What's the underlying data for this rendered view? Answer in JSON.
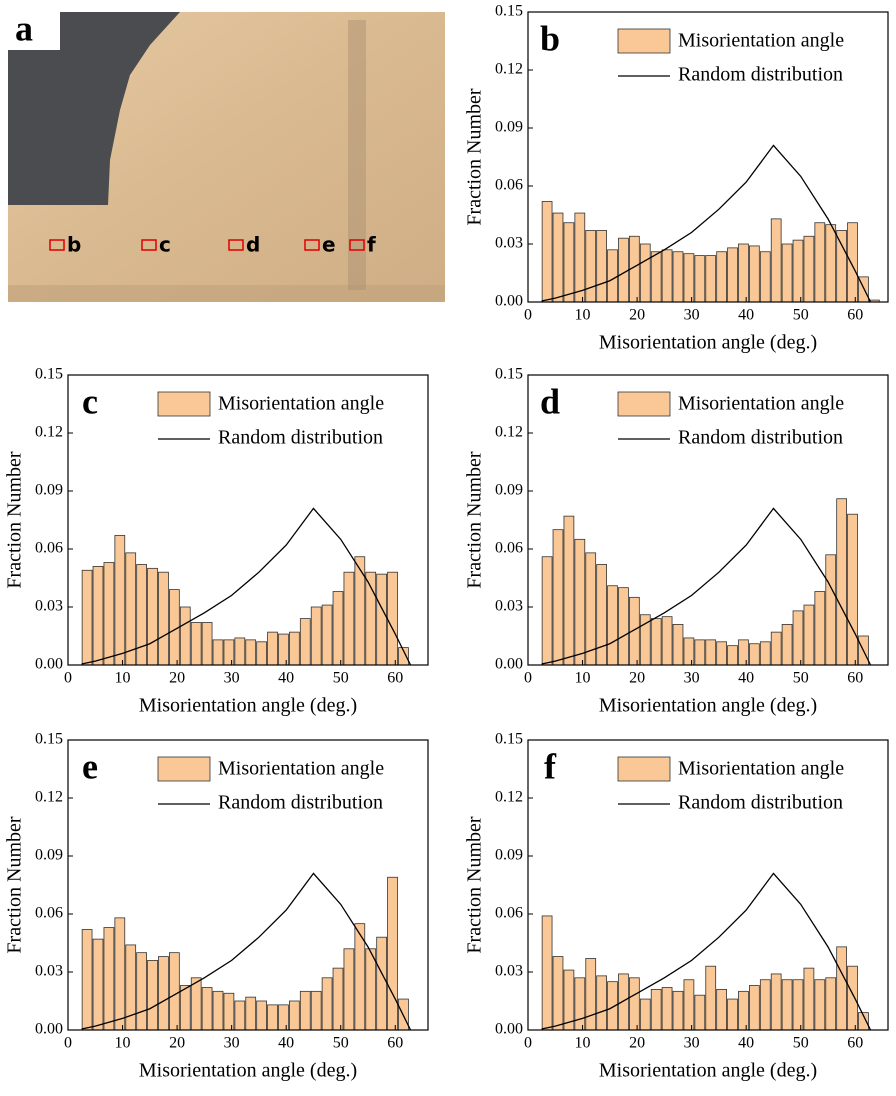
{
  "image_panel": {
    "label": "a",
    "markers": [
      "b",
      "c",
      "d",
      "e",
      "f"
    ]
  },
  "chart_data": [
    {
      "type": "histogram",
      "panel_label": "b",
      "xlabel": "Misorientation angle (deg.)",
      "ylabel": "Fraction Number",
      "bins": [
        2.5,
        4.5,
        6.5,
        8.5,
        10.5,
        12.5,
        14.5,
        16.5,
        18.5,
        20.5,
        22.5,
        24.5,
        26.5,
        28.5,
        30.5,
        32.5,
        34.5,
        36.5,
        38.5,
        40.5,
        42.5,
        44.5,
        46.5,
        48.5,
        50.5,
        52.5,
        54.5,
        56.5,
        58.5,
        60.5,
        62.5,
        64.5
      ],
      "series": [
        {
          "name": "Misorientation angle",
          "color": "#f9c896",
          "values": [
            0.052,
            0.046,
            0.041,
            0.046,
            0.037,
            0.037,
            0.027,
            0.033,
            0.034,
            0.03,
            0.026,
            0.027,
            0.026,
            0.025,
            0.024,
            0.024,
            0.026,
            0.028,
            0.03,
            0.029,
            0.026,
            0.043,
            0.03,
            0.032,
            0.034,
            0.041,
            0.04,
            0.037,
            0.041,
            0.013,
            0.001
          ]
        }
      ],
      "line": {
        "name": "Random distribution",
        "color": "#000000",
        "x": [
          2.5,
          5,
          10,
          15,
          20,
          25,
          30,
          35,
          40,
          45,
          50,
          55,
          60,
          62.8
        ],
        "values": [
          0.0005,
          0.002,
          0.006,
          0.011,
          0.019,
          0.027,
          0.036,
          0.048,
          0.062,
          0.081,
          0.065,
          0.043,
          0.016,
          0.0
        ]
      },
      "xlim": [
        0,
        66
      ],
      "ylim": [
        0,
        0.15
      ],
      "xticks": [
        0,
        10,
        20,
        30,
        40,
        50,
        60
      ],
      "yticks": [
        {
          "value": 0,
          "label": "0.00"
        },
        {
          "value": 0.03,
          "label": "0.03"
        },
        {
          "value": 0.06,
          "label": "0.06"
        },
        {
          "value": 0.09,
          "label": "0.09"
        },
        {
          "value": 0.12,
          "label": "0.12"
        },
        {
          "value": 0.15,
          "label": "0.15"
        }
      ]
    },
    {
      "type": "histogram",
      "panel_label": "c",
      "xlabel": "Misorientation angle (deg.)",
      "ylabel": "Fraction Number",
      "bins": [
        2.5,
        4.5,
        6.5,
        8.5,
        10.5,
        12.5,
        14.5,
        16.5,
        18.5,
        20.5,
        22.5,
        24.5,
        26.5,
        28.5,
        30.5,
        32.5,
        34.5,
        36.5,
        38.5,
        40.5,
        42.5,
        44.5,
        46.5,
        48.5,
        50.5,
        52.5,
        54.5,
        56.5,
        58.5,
        60.5,
        62.5,
        64.5
      ],
      "series": [
        {
          "name": "Misorientation angle",
          "color": "#f9c896",
          "values": [
            0.049,
            0.051,
            0.053,
            0.067,
            0.058,
            0.052,
            0.05,
            0.048,
            0.039,
            0.03,
            0.022,
            0.022,
            0.013,
            0.013,
            0.014,
            0.013,
            0.012,
            0.017,
            0.016,
            0.017,
            0.024,
            0.03,
            0.031,
            0.038,
            0.048,
            0.056,
            0.048,
            0.047,
            0.048,
            0.009,
            0.0
          ]
        }
      ],
      "line": {
        "name": "Random distribution",
        "color": "#000000",
        "x": [
          2.5,
          5,
          10,
          15,
          20,
          25,
          30,
          35,
          40,
          45,
          50,
          55,
          60,
          62.8
        ],
        "values": [
          0.0005,
          0.002,
          0.006,
          0.011,
          0.019,
          0.027,
          0.036,
          0.048,
          0.062,
          0.081,
          0.065,
          0.043,
          0.016,
          0.0
        ]
      },
      "xlim": [
        0,
        66
      ],
      "ylim": [
        0,
        0.15
      ],
      "xticks": [
        0,
        10,
        20,
        30,
        40,
        50,
        60
      ],
      "yticks": [
        {
          "value": 0,
          "label": "0.00"
        },
        {
          "value": 0.03,
          "label": "0.03"
        },
        {
          "value": 0.06,
          "label": "0.06"
        },
        {
          "value": 0.09,
          "label": "0.09"
        },
        {
          "value": 0.12,
          "label": "0.12"
        },
        {
          "value": 0.15,
          "label": "0.15"
        }
      ]
    },
    {
      "type": "histogram",
      "panel_label": "d",
      "xlabel": "Misorientation angle (deg.)",
      "ylabel": "Fraction Number",
      "bins": [
        2.5,
        4.5,
        6.5,
        8.5,
        10.5,
        12.5,
        14.5,
        16.5,
        18.5,
        20.5,
        22.5,
        24.5,
        26.5,
        28.5,
        30.5,
        32.5,
        34.5,
        36.5,
        38.5,
        40.5,
        42.5,
        44.5,
        46.5,
        48.5,
        50.5,
        52.5,
        54.5,
        56.5,
        58.5,
        60.5,
        62.5,
        64.5
      ],
      "series": [
        {
          "name": "Misorientation angle",
          "color": "#f9c896",
          "values": [
            0.056,
            0.07,
            0.077,
            0.065,
            0.058,
            0.052,
            0.041,
            0.04,
            0.035,
            0.026,
            0.024,
            0.025,
            0.021,
            0.014,
            0.013,
            0.013,
            0.012,
            0.01,
            0.013,
            0.011,
            0.012,
            0.017,
            0.021,
            0.028,
            0.031,
            0.038,
            0.057,
            0.086,
            0.078,
            0.015,
            0.0
          ]
        }
      ],
      "line": {
        "name": "Random distribution",
        "color": "#000000",
        "x": [
          2.5,
          5,
          10,
          15,
          20,
          25,
          30,
          35,
          40,
          45,
          50,
          55,
          60,
          62.8
        ],
        "values": [
          0.0005,
          0.002,
          0.006,
          0.011,
          0.019,
          0.027,
          0.036,
          0.048,
          0.062,
          0.081,
          0.065,
          0.043,
          0.016,
          0.0
        ]
      },
      "xlim": [
        0,
        66
      ],
      "ylim": [
        0,
        0.15
      ],
      "xticks": [
        0,
        10,
        20,
        30,
        40,
        50,
        60
      ],
      "yticks": [
        {
          "value": 0,
          "label": "0.00"
        },
        {
          "value": 0.03,
          "label": "0.03"
        },
        {
          "value": 0.06,
          "label": "0.06"
        },
        {
          "value": 0.09,
          "label": "0.09"
        },
        {
          "value": 0.12,
          "label": "0.12"
        },
        {
          "value": 0.15,
          "label": "0.15"
        }
      ]
    },
    {
      "type": "histogram",
      "panel_label": "e",
      "xlabel": "Misorientation angle (deg.)",
      "ylabel": "Fraction Number",
      "bins": [
        2.5,
        4.5,
        6.5,
        8.5,
        10.5,
        12.5,
        14.5,
        16.5,
        18.5,
        20.5,
        22.5,
        24.5,
        26.5,
        28.5,
        30.5,
        32.5,
        34.5,
        36.5,
        38.5,
        40.5,
        42.5,
        44.5,
        46.5,
        48.5,
        50.5,
        52.5,
        54.5,
        56.5,
        58.5,
        60.5,
        62.5,
        64.5
      ],
      "series": [
        {
          "name": "Misorientation angle",
          "color": "#f9c896",
          "values": [
            0.052,
            0.047,
            0.053,
            0.058,
            0.044,
            0.04,
            0.036,
            0.038,
            0.04,
            0.023,
            0.027,
            0.022,
            0.02,
            0.019,
            0.015,
            0.017,
            0.015,
            0.013,
            0.013,
            0.015,
            0.02,
            0.02,
            0.027,
            0.032,
            0.042,
            0.055,
            0.042,
            0.048,
            0.079,
            0.016,
            0.0
          ]
        }
      ],
      "line": {
        "name": "Random distribution",
        "color": "#000000",
        "x": [
          2.5,
          5,
          10,
          15,
          20,
          25,
          30,
          35,
          40,
          45,
          50,
          55,
          60,
          62.8
        ],
        "values": [
          0.0005,
          0.002,
          0.006,
          0.011,
          0.019,
          0.027,
          0.036,
          0.048,
          0.062,
          0.081,
          0.065,
          0.043,
          0.016,
          0.0
        ]
      },
      "xlim": [
        0,
        66
      ],
      "ylim": [
        0,
        0.15
      ],
      "xticks": [
        0,
        10,
        20,
        30,
        40,
        50,
        60
      ],
      "yticks": [
        {
          "value": 0,
          "label": "0.00"
        },
        {
          "value": 0.03,
          "label": "0.03"
        },
        {
          "value": 0.06,
          "label": "0.06"
        },
        {
          "value": 0.09,
          "label": "0.09"
        },
        {
          "value": 0.12,
          "label": "0.12"
        },
        {
          "value": 0.15,
          "label": "0.15"
        }
      ]
    },
    {
      "type": "histogram",
      "panel_label": "f",
      "xlabel": "Misorientation angle (deg.)",
      "ylabel": "Fraction Number",
      "bins": [
        2.5,
        4.5,
        6.5,
        8.5,
        10.5,
        12.5,
        14.5,
        16.5,
        18.5,
        20.5,
        22.5,
        24.5,
        26.5,
        28.5,
        30.5,
        32.5,
        34.5,
        36.5,
        38.5,
        40.5,
        42.5,
        44.5,
        46.5,
        48.5,
        50.5,
        52.5,
        54.5,
        56.5,
        58.5,
        60.5,
        62.5,
        64.5
      ],
      "series": [
        {
          "name": "Misorientation angle",
          "color": "#f9c896",
          "values": [
            0.059,
            0.038,
            0.031,
            0.027,
            0.037,
            0.028,
            0.025,
            0.029,
            0.027,
            0.016,
            0.021,
            0.022,
            0.02,
            0.026,
            0.018,
            0.033,
            0.021,
            0.016,
            0.02,
            0.023,
            0.026,
            0.029,
            0.026,
            0.026,
            0.032,
            0.026,
            0.027,
            0.043,
            0.033,
            0.009,
            0.0
          ]
        }
      ],
      "line": {
        "name": "Random distribution",
        "color": "#000000",
        "x": [
          2.5,
          5,
          10,
          15,
          20,
          25,
          30,
          35,
          40,
          45,
          50,
          55,
          60,
          62.8
        ],
        "values": [
          0.0005,
          0.002,
          0.006,
          0.011,
          0.019,
          0.027,
          0.036,
          0.048,
          0.062,
          0.081,
          0.065,
          0.043,
          0.016,
          0.0
        ]
      },
      "xlim": [
        0,
        66
      ],
      "ylim": [
        0,
        0.15
      ],
      "xticks": [
        0,
        10,
        20,
        30,
        40,
        50,
        60
      ],
      "yticks": [
        {
          "value": 0,
          "label": "0.00"
        },
        {
          "value": 0.03,
          "label": "0.03"
        },
        {
          "value": 0.06,
          "label": "0.06"
        },
        {
          "value": 0.09,
          "label": "0.09"
        },
        {
          "value": 0.12,
          "label": "0.12"
        },
        {
          "value": 0.15,
          "label": "0.15"
        }
      ]
    }
  ]
}
